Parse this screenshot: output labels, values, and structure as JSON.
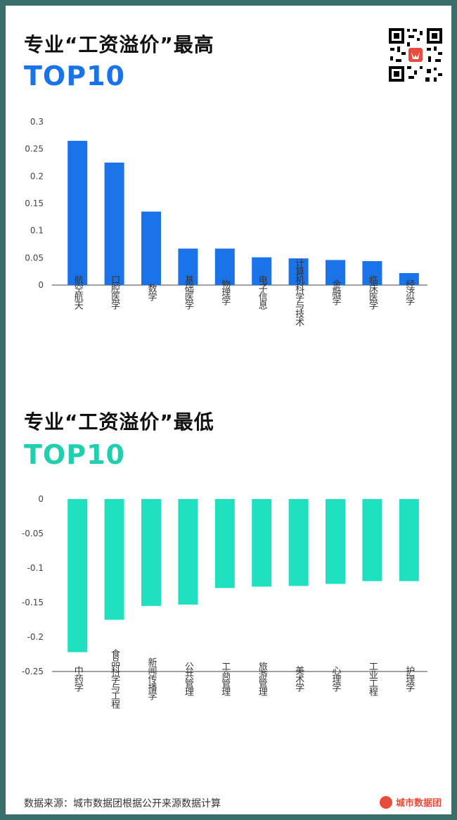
{
  "colors": {
    "frame": "#3a6e6a",
    "top_bars": "#1a73e8",
    "bottom_bars": "#1fe0bf",
    "top_heading": "#1a73e8",
    "bottom_heading": "#1fcfb0"
  },
  "top": {
    "title": "专业“工资溢价”最高",
    "subtitle": "TOP10"
  },
  "bottom": {
    "title": "专业“工资溢价”最低",
    "subtitle": "TOP10"
  },
  "qr_icon": "qr-code-icon",
  "footer": {
    "source": "数据来源：城市数据团根据公开来源数据计算",
    "brand": "城市数据团",
    "brand_icon": "fox-logo-icon"
  },
  "chart_data": [
    {
      "type": "bar",
      "categories": [
        "航空航天",
        "口腔医学",
        "数学",
        "基础医学",
        "物理学",
        "电子信息",
        "计算机科学与技术",
        "金融学",
        "临床医学",
        "经济学"
      ],
      "values": [
        0.265,
        0.225,
        0.135,
        0.067,
        0.067,
        0.051,
        0.049,
        0.046,
        0.044,
        0.022
      ],
      "yticks": [
        "0",
        "0.05",
        "0.1",
        "0.15",
        "0.2",
        "0.25",
        "0.3"
      ],
      "ylim": [
        0,
        0.3
      ],
      "grid": false,
      "legend": "none"
    },
    {
      "type": "bar",
      "categories": [
        "中药学",
        "食品科学与工程",
        "新闻传播学",
        "公共管理",
        "工商管理",
        "旅游管理",
        "美术学",
        "心理学",
        "工业工程",
        "护理学"
      ],
      "values": [
        -0.222,
        -0.175,
        -0.155,
        -0.153,
        -0.129,
        -0.127,
        -0.126,
        -0.123,
        -0.119,
        -0.119
      ],
      "yticks": [
        "0",
        "-0.05",
        "-0.1",
        "-0.15",
        "-0.2",
        "-0.25"
      ],
      "ylim": [
        -0.25,
        0
      ],
      "grid": false,
      "legend": "none"
    }
  ]
}
